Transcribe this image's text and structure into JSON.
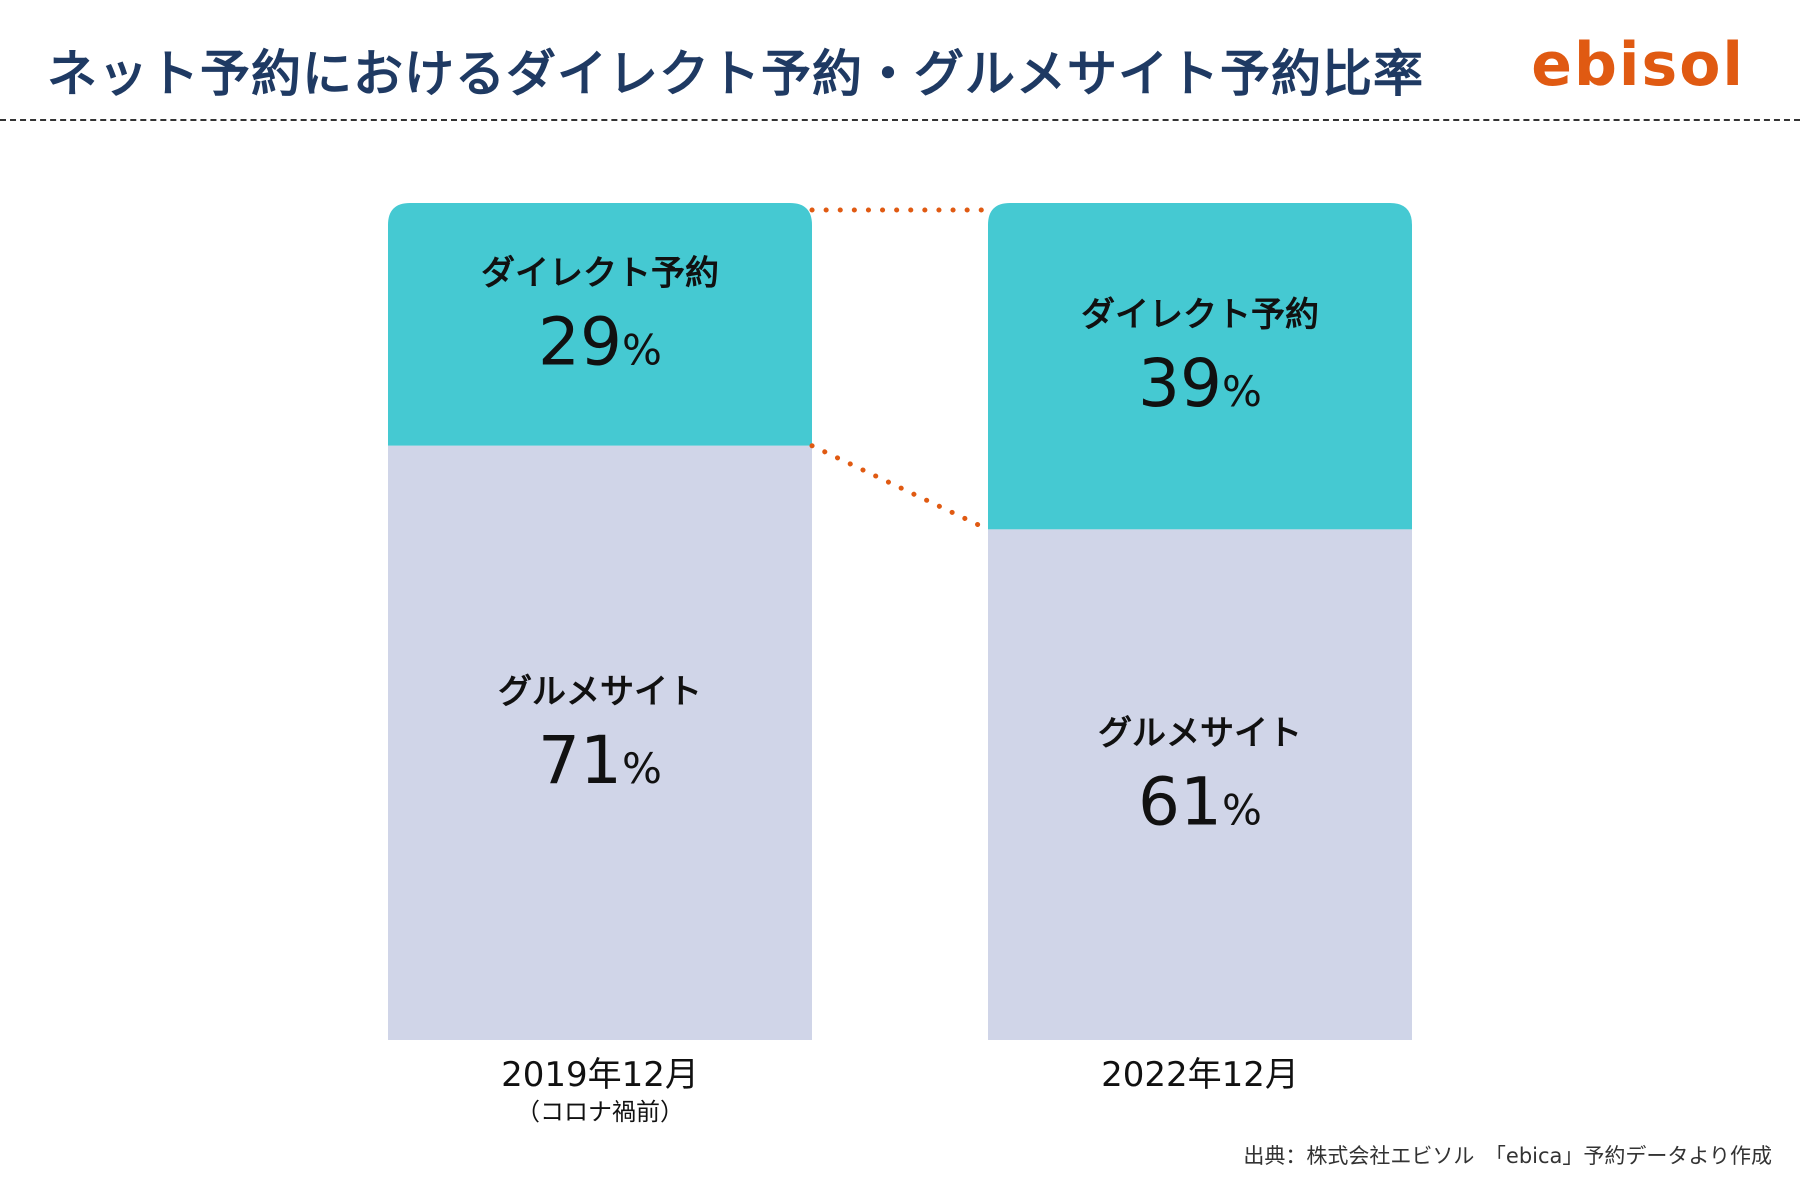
{
  "header": {
    "title": "ネット予約におけるダイレクト予約・グルメサイト予約比率",
    "logo": "ebisol"
  },
  "source_note": "出典：株式会社エビソル　「ebica」予約データより作成",
  "colors": {
    "direct": "#45c9d2",
    "gourmet": "#d0d5e8",
    "connector": "#e05a12",
    "title": "#1f3a63",
    "logo": "#e05a12"
  },
  "chart_data": {
    "type": "bar",
    "stacked": true,
    "normalized_percent": true,
    "categories": [
      "2019年12月",
      "2022年12月"
    ],
    "category_notes": [
      "（コロナ禍前）",
      ""
    ],
    "series": [
      {
        "name": "ダイレクト予約",
        "values": [
          29,
          39
        ]
      },
      {
        "name": "グルメサイト",
        "values": [
          71,
          61
        ]
      }
    ],
    "unit": "%",
    "ylim": [
      0,
      100
    ],
    "grid": false,
    "legend": "none",
    "connector_lines": "dotted"
  }
}
